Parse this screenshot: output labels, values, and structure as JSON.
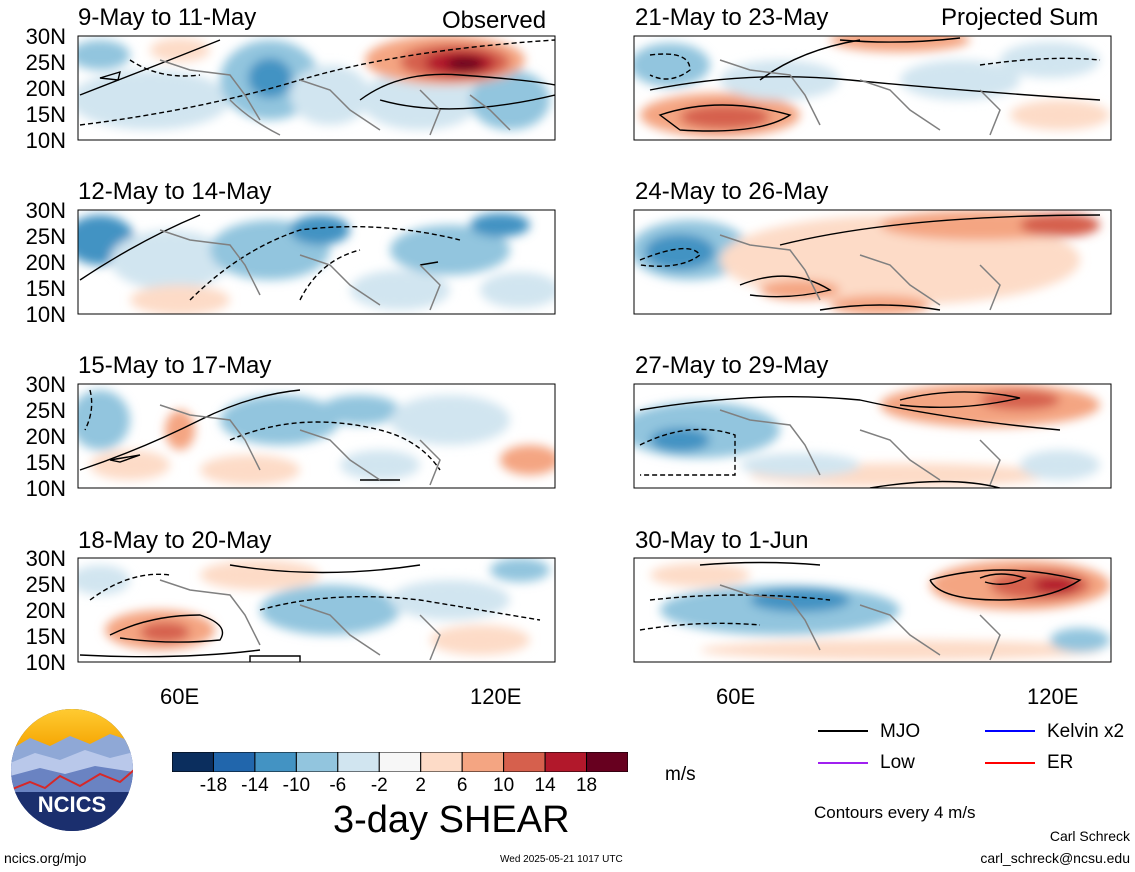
{
  "observed_label": "Observed",
  "projected_label": "Projected Sum",
  "left_panels": [
    {
      "title": "9-May to 11-May"
    },
    {
      "title": "12-May to 14-May"
    },
    {
      "title": "15-May to 17-May"
    },
    {
      "title": "18-May to 20-May"
    }
  ],
  "right_panels": [
    {
      "title": "21-May to 23-May"
    },
    {
      "title": "24-May to 26-May"
    },
    {
      "title": "27-May to 29-May"
    },
    {
      "title": "30-May to 1-Jun"
    }
  ],
  "lat_labels": [
    "30N",
    "25N",
    "20N",
    "15N",
    "10N"
  ],
  "lon_labels": [
    "60E",
    "120E"
  ],
  "colorbar": {
    "colors": [
      "#0b2e5e",
      "#2166ac",
      "#4393c3",
      "#92c5de",
      "#d1e5f0",
      "#f7f7f7",
      "#fddbc7",
      "#f4a582",
      "#d6604d",
      "#b2182b",
      "#67001f"
    ],
    "tick_labels": [
      "-18",
      "-14",
      "-10",
      "-6",
      "-2",
      "2",
      "6",
      "10",
      "14",
      "18"
    ],
    "units": "m/s",
    "title": "3-day SHEAR"
  },
  "legend": [
    {
      "label": "MJO",
      "color": "#000000"
    },
    {
      "label": "Kelvin x2",
      "color": "#0000ff"
    },
    {
      "label": "Low",
      "color": "#a020f0"
    },
    {
      "label": "ER",
      "color": "#ff0000"
    }
  ],
  "contours_note": "Contours every 4 m/s",
  "logo_text": "NCICS",
  "footer_left": "ncics.org/mjo",
  "footer_center": "Wed 2025-05-21 1017 UTC",
  "author_name": "Carl Schreck",
  "author_email": "carl_schreck@ncsu.edu"
}
